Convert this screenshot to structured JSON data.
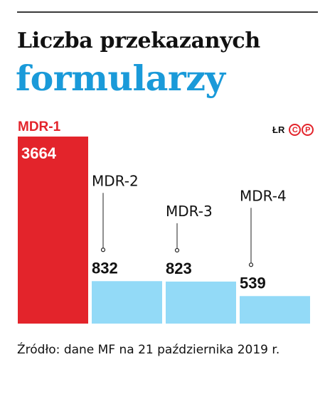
{
  "title_line1": "Liczba przekazanych",
  "title_line2": "formularzy",
  "credit": {
    "initials": "ŁR",
    "logo": [
      "C",
      "P"
    ]
  },
  "source": "Źródło: dane MF na 21 października 2019 r.",
  "colors": {
    "highlight": "#e3242b",
    "bar": "#93daf7",
    "title_accent": "#1a9ad9",
    "text": "#111111"
  },
  "chart_data": {
    "type": "bar",
    "categories": [
      "MDR-1",
      "MDR-2",
      "MDR-3",
      "MDR-4"
    ],
    "values": [
      3664,
      832,
      823,
      539
    ],
    "value_labels": [
      "3664",
      "832",
      "823",
      "539"
    ],
    "highlight_index": 0
  }
}
